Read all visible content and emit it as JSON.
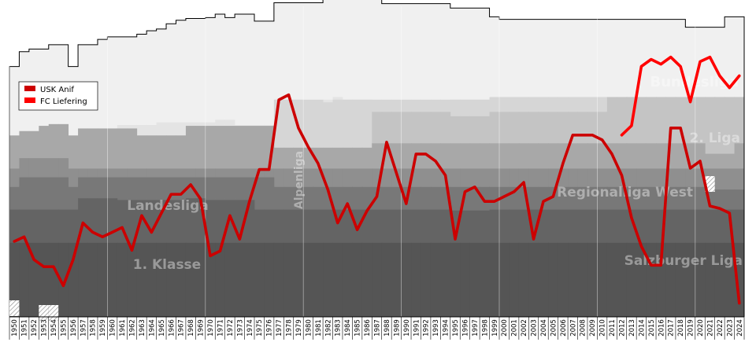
{
  "chart_data": {
    "type": "line",
    "x": [
      1950,
      1951,
      1952,
      1953,
      1954,
      1955,
      1956,
      1957,
      1958,
      1959,
      1960,
      1961,
      1962,
      1963,
      1964,
      1965,
      1966,
      1967,
      1968,
      1969,
      1970,
      1971,
      1972,
      1973,
      1974,
      1975,
      1976,
      1977,
      1978,
      1979,
      1980,
      1981,
      1982,
      1983,
      1984,
      1985,
      1986,
      1987,
      1988,
      1989,
      1990,
      1991,
      1992,
      1993,
      1994,
      1995,
      1996,
      1997,
      1998,
      1999,
      2000,
      2001,
      2002,
      2003,
      2004,
      2005,
      2006,
      2007,
      2008,
      2009,
      2010,
      2011,
      2012,
      2013,
      2014,
      2015,
      2016,
      2017,
      2018,
      2019,
      2020,
      2021,
      2022,
      2023,
      2024
    ],
    "x_tick_labels": [
      "1950",
      "1951",
      "1952",
      "1953",
      "1954",
      "1955",
      "1956",
      "1957",
      "1958",
      "1959",
      "1960",
      "1961",
      "1962",
      "1963",
      "1964",
      "1965",
      "1966",
      "1967",
      "1968",
      "1969",
      "1970",
      "1971",
      "1972",
      "1973",
      "1974",
      "1975",
      "1976",
      "1977",
      "1978",
      "1979",
      "1980",
      "1981",
      "1982",
      "1983",
      "1984",
      "1985",
      "1986",
      "1987",
      "1988",
      "1989",
      "1990",
      "1991",
      "1992",
      "1993",
      "1994",
      "1995",
      "1996",
      "1997",
      "1998",
      "1999",
      "2000",
      "2001",
      "2002",
      "2003",
      "2004",
      "2005",
      "2006",
      "2007",
      "2008",
      "2009",
      "2010",
      "2011",
      "2012",
      "2013",
      "2014",
      "2015",
      "2016",
      "2017",
      "2018",
      "2019",
      "2020",
      "2021",
      "2022",
      "2023",
      "2024"
    ],
    "series": [
      {
        "name": "USK Anif",
        "color": "#cc0000",
        "values": [
          0.233,
          0.215,
          0.305,
          0.333,
          0.333,
          0.408,
          0.305,
          0.16,
          0.197,
          0.215,
          0.197,
          0.178,
          0.268,
          0.131,
          0.197,
          0.122,
          0.047,
          0.047,
          0.009,
          0.065,
          0.29,
          0.271,
          0.131,
          0.224,
          0.075,
          -0.051,
          -0.051,
          -0.326,
          -0.346,
          -0.215,
          -0.14,
          -0.075,
          0.028,
          0.16,
          0.084,
          0.187,
          0.112,
          0.056,
          -0.159,
          -0.037,
          0.084,
          -0.112,
          -0.112,
          -0.084,
          -0.028,
          0.224,
          0.037,
          0.018,
          0.075,
          0.075,
          0.056,
          0.037,
          0.0,
          0.224,
          0.075,
          0.056,
          -0.075,
          -0.187,
          -0.187,
          -0.187,
          -0.168,
          -0.112,
          -0.028,
          0.14,
          0.252,
          0.327,
          0.327,
          -0.215,
          -0.215,
          -0.056,
          -0.084,
          0.093,
          0.103,
          0.121,
          0.477
        ]
      },
      {
        "name": "FC Liefering",
        "color": "#ff0000",
        "values": [
          null,
          null,
          null,
          null,
          null,
          null,
          null,
          null,
          null,
          null,
          null,
          null,
          null,
          null,
          null,
          null,
          null,
          null,
          null,
          null,
          null,
          null,
          null,
          null,
          null,
          null,
          null,
          null,
          null,
          null,
          null,
          null,
          null,
          null,
          null,
          null,
          null,
          null,
          null,
          null,
          null,
          null,
          null,
          null,
          null,
          null,
          null,
          null,
          null,
          null,
          null,
          null,
          null,
          null,
          null,
          null,
          null,
          null,
          null,
          null,
          null,
          null,
          -0.187,
          -0.224,
          -0.458,
          -0.486,
          -0.467,
          -0.495,
          -0.458,
          -0.318,
          -0.477,
          -0.495,
          -0.421,
          -0.374,
          -0.421
        ]
      }
    ],
    "legend": [
      "USK Anif",
      "FC Liefering"
    ],
    "legend_position": "top-left",
    "league_labels": [
      "Bundesliga",
      "2. Liga",
      "Regionalliga West",
      "Salzburger Liga",
      "Landesliga",
      "1. Klasse",
      "Alpenliga"
    ],
    "xlim": [
      1950,
      2024
    ],
    "grid": "vertical gridlines every 10 seasons",
    "tier_band_colors": [
      "#f0f0f0",
      "#e4e4e4",
      "#d6d6d6",
      "#c4c4c4",
      "#a8a8a8",
      "#8f8f8f",
      "#787878",
      "#646464",
      "#555555"
    ]
  }
}
